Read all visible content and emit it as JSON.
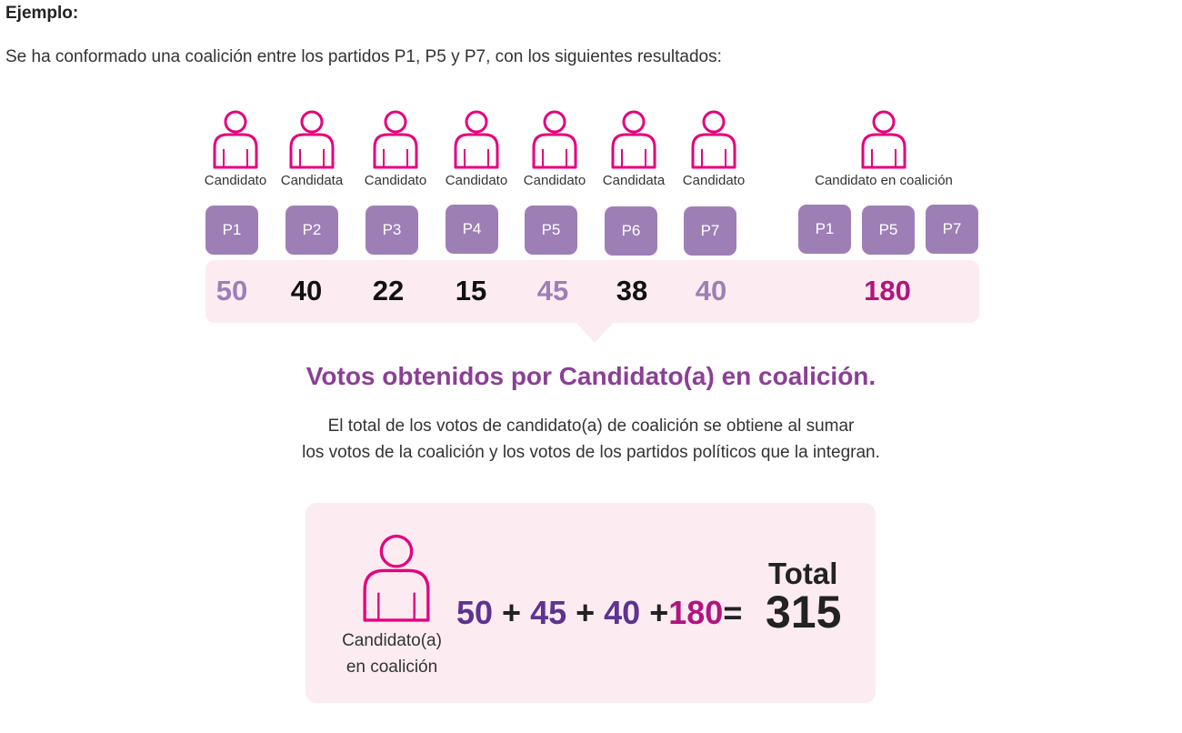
{
  "heading": "Ejemplo:",
  "intro": "Se ha conformado una coalición entre los partidos P1, P5 y P7, con los siguientes resultados:",
  "candidates": [
    {
      "label": "Candidato",
      "party": "P1",
      "votes": "50",
      "votes_color": "#9d7fb6"
    },
    {
      "label": "Candidata",
      "party": "P2",
      "votes": "40",
      "votes_color": "#111111"
    },
    {
      "label": "Candidato",
      "party": "P3",
      "votes": "22",
      "votes_color": "#111111"
    },
    {
      "label": "Candidato",
      "party": "P4",
      "votes": "15",
      "votes_color": "#111111"
    },
    {
      "label": "Candidato",
      "party": "P5",
      "votes": "45",
      "votes_color": "#9d7fb6"
    },
    {
      "label": "Candidata",
      "party": "P6",
      "votes": "38",
      "votes_color": "#111111"
    },
    {
      "label": "Candidato",
      "party": "P7",
      "votes": "40",
      "votes_color": "#9d7fb6"
    }
  ],
  "coalition": {
    "label": "Candidato en coalición",
    "parties": [
      "P1",
      "P5",
      "P7"
    ],
    "votes": "180",
    "votes_color": "#b0157f"
  },
  "subtitle": "Votos obtenidos por Candidato(a) en coalición.",
  "description": [
    "El total de los votos de candidato(a) de coalición se obtiene al sumar",
    "los votos de la coalición y los votos de los partidos políticos que la integran."
  ],
  "formula": {
    "candidate_label_line1": "Candidato(a)",
    "candidate_label_line2": "en coalición",
    "term1": "50",
    "plus1": " + ",
    "term2": "45",
    "plus2": " + ",
    "term3": "40",
    "plus3": " +",
    "term4": "180",
    "equals": "=",
    "total_label": "Total",
    "total_value": "315"
  },
  "colors": {
    "icon": "#e5007e",
    "party_box": "#9d7fb6",
    "coalition_party_votes": "#9d7fb6",
    "formula_terms": "#5e3391",
    "coalition_votes": "#b0157f",
    "subtitle": "#8b3f96",
    "band": "#fcecf2"
  },
  "icon_name": "person-outline-icon"
}
